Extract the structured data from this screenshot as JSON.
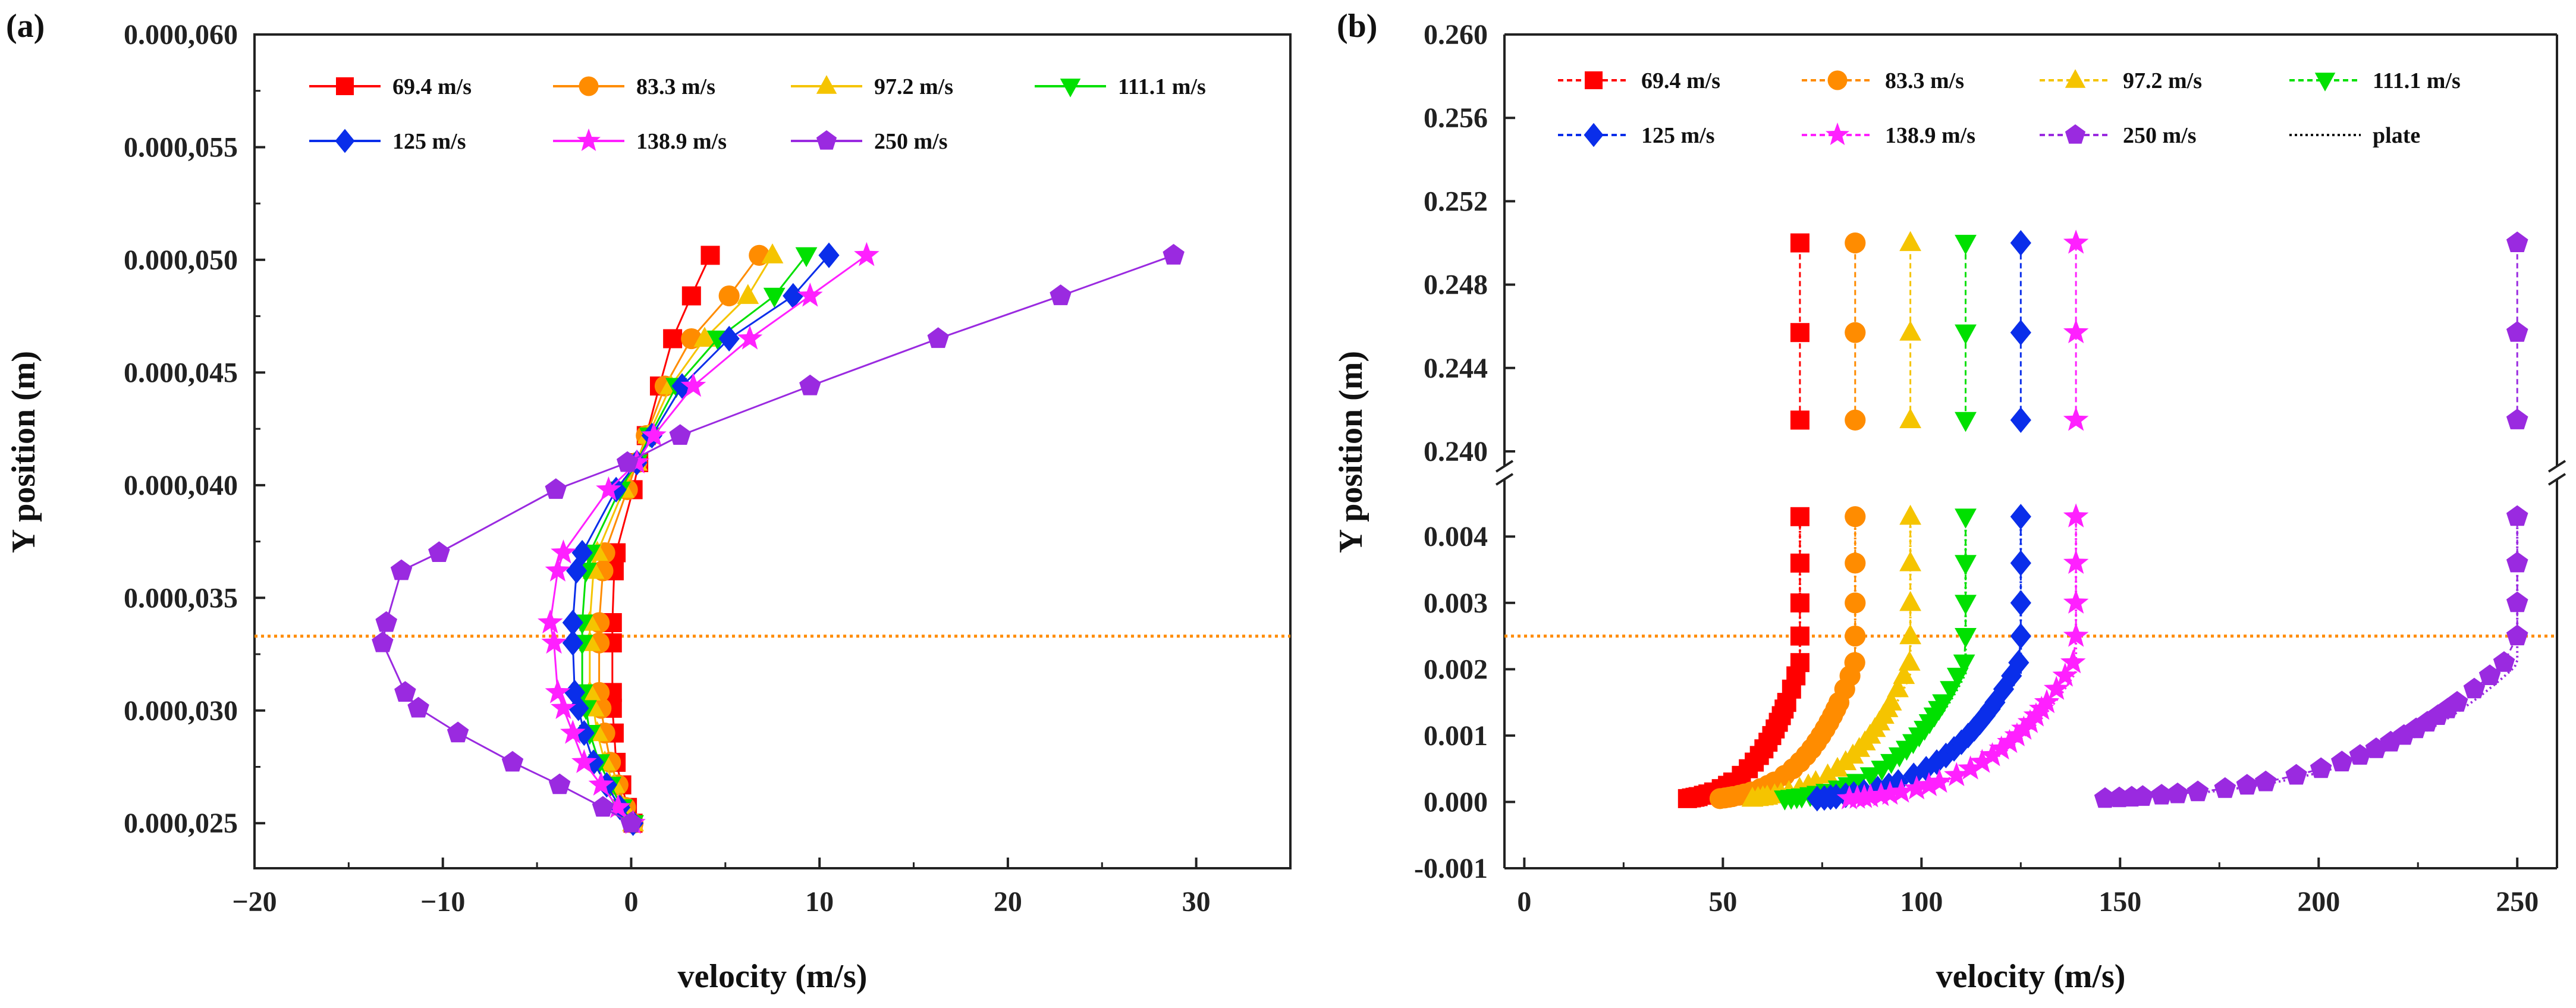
{
  "chart_data": [
    {
      "id": "a",
      "type": "line",
      "panel_label": "(a)",
      "xlabel": "velocity (m/s)",
      "ylabel": "Y position (m)",
      "xlim": [
        -20,
        35
      ],
      "ylim": [
        2.3e-05,
        6e-05
      ],
      "xticks": [
        -20,
        -10,
        0,
        10,
        20,
        30
      ],
      "xtick_labels": [
        "−20",
        "−10",
        "0",
        "10",
        "20",
        "30"
      ],
      "yticks": [
        2.5e-05,
        3e-05,
        3.5e-05,
        4e-05,
        4.5e-05,
        5e-05,
        5.5e-05,
        6e-05
      ],
      "ytick_labels": [
        "0.000,025",
        "0.000,030",
        "0.000,035",
        "0.000,040",
        "0.000,045",
        "0.000,050",
        "0.000,055",
        "0.000,060"
      ],
      "reference_line_y": 3.33e-05,
      "y_points": [
        2.5e-05,
        2.57e-05,
        2.67e-05,
        2.77e-05,
        2.9e-05,
        3.01e-05,
        3.08e-05,
        3.3e-05,
        3.39e-05,
        3.62e-05,
        3.7e-05,
        3.98e-05,
        4.1e-05,
        4.22e-05,
        4.44e-05,
        4.65e-05,
        4.84e-05,
        5.02e-05
      ],
      "series": [
        {
          "name": "69.4 m/s",
          "color": "#ff0000",
          "marker": "square",
          "values": [
            0.1,
            -0.2,
            -0.5,
            -0.8,
            -0.9,
            -1.0,
            -1.0,
            -1.0,
            -1.0,
            -0.9,
            -0.8,
            0.1,
            0.4,
            0.8,
            1.5,
            2.2,
            3.2,
            4.2
          ]
        },
        {
          "name": "83.3 m/s",
          "color": "#ff8c00",
          "marker": "circle",
          "values": [
            0.1,
            -0.3,
            -0.7,
            -1.1,
            -1.4,
            -1.6,
            -1.7,
            -1.7,
            -1.7,
            -1.5,
            -1.4,
            -0.2,
            0.3,
            0.8,
            1.8,
            3.2,
            5.2,
            6.8
          ]
        },
        {
          "name": "97.2 m/s",
          "color": "#f5c400",
          "marker": "triangle-up",
          "values": [
            0.1,
            -0.4,
            -0.9,
            -1.4,
            -1.8,
            -2.0,
            -2.2,
            -2.2,
            -2.2,
            -2.0,
            -1.8,
            -0.4,
            0.3,
            0.9,
            2.1,
            3.9,
            6.2,
            7.5
          ]
        },
        {
          "name": "111.1 m/s",
          "color": "#00e000",
          "marker": "triangle-down",
          "values": [
            0.1,
            -0.5,
            -1.1,
            -1.7,
            -2.2,
            -2.4,
            -2.6,
            -2.6,
            -2.6,
            -2.4,
            -2.2,
            -0.6,
            0.3,
            1.0,
            2.4,
            4.6,
            7.6,
            9.3
          ]
        },
        {
          "name": "125 m/s",
          "color": "#0a2eea",
          "marker": "diamond",
          "values": [
            0.1,
            -0.6,
            -1.3,
            -2.0,
            -2.5,
            -2.8,
            -3.0,
            -3.1,
            -3.1,
            -2.9,
            -2.6,
            -0.8,
            0.3,
            1.1,
            2.7,
            5.2,
            8.6,
            10.5
          ]
        },
        {
          "name": "138.9 m/s",
          "color": "#ff20ff",
          "marker": "star",
          "values": [
            0.1,
            -0.7,
            -1.6,
            -2.5,
            -3.1,
            -3.6,
            -3.9,
            -4.1,
            -4.3,
            -3.9,
            -3.6,
            -1.2,
            0.3,
            1.2,
            3.3,
            6.3,
            9.5,
            12.5
          ]
        },
        {
          "name": "250 m/s",
          "color": "#9a2ae0",
          "marker": "pentagon",
          "values": [
            0.0,
            -1.5,
            -3.8,
            -6.3,
            -9.2,
            -11.3,
            -12.0,
            -13.2,
            -13.0,
            -12.2,
            -10.2,
            -4.0,
            -0.2,
            2.6,
            9.5,
            16.3,
            22.8,
            28.8
          ]
        }
      ]
    },
    {
      "id": "b",
      "type": "line",
      "panel_label": "(b)",
      "xlabel": "velocity (m/s)",
      "ylabel": "Y position (m)",
      "xlim": [
        -5,
        260
      ],
      "ylim_lower": [
        -0.001,
        0.0048
      ],
      "ylim_upper": [
        0.2396,
        0.26
      ],
      "axis_break": true,
      "xticks": [
        0,
        50,
        100,
        150,
        200,
        250
      ],
      "xtick_labels": [
        "0",
        "50",
        "100",
        "150",
        "200",
        "250"
      ],
      "yticks_lower": [
        -0.001,
        0.0,
        0.001,
        0.002,
        0.003,
        0.004
      ],
      "ytick_labels_lower": [
        "-0.001",
        "0.000",
        "0.001",
        "0.002",
        "0.003",
        "0.004"
      ],
      "yticks_upper": [
        0.24,
        0.244,
        0.248,
        0.252,
        0.256,
        0.26
      ],
      "ytick_labels_upper": [
        "0.240",
        "0.244",
        "0.248",
        "0.252",
        "0.256",
        "0.260"
      ],
      "reference_line_y": 0.0025,
      "profile_y": [
        5e-05,
        6e-05,
        7e-05,
        8e-05,
        0.0001,
        0.00012,
        0.00015,
        0.0002,
        0.00025,
        0.0003,
        0.0004,
        0.0005,
        0.0006,
        0.0007,
        0.0008,
        0.0009,
        0.001,
        0.0011,
        0.0012,
        0.0013,
        0.0014,
        0.0015,
        0.0017,
        0.0019,
        0.0021,
        0.0025,
        0.003,
        0.0036,
        0.0043
      ],
      "profile_y_upper": [
        0.2415,
        0.2457,
        0.25
      ],
      "series": [
        {
          "name": "69.4 m/s",
          "color": "#ff0000",
          "marker": "square",
          "free_stream": 69.4
        },
        {
          "name": "83.3 m/s",
          "color": "#ff8c00",
          "marker": "circle",
          "free_stream": 83.3
        },
        {
          "name": "97.2 m/s",
          "color": "#f5c400",
          "marker": "triangle-up",
          "free_stream": 97.2
        },
        {
          "name": "111.1 m/s",
          "color": "#00e000",
          "marker": "triangle-down",
          "free_stream": 111.1
        },
        {
          "name": "125 m/s",
          "color": "#0a2eea",
          "marker": "diamond",
          "free_stream": 125
        },
        {
          "name": "138.9 m/s",
          "color": "#ff20ff",
          "marker": "star",
          "free_stream": 138.9
        },
        {
          "name": "250 m/s",
          "color": "#9a2ae0",
          "marker": "pentagon",
          "free_stream": 250
        },
        {
          "name": "plate",
          "color": "#111111",
          "marker": "none",
          "free_stream": null
        }
      ]
    }
  ]
}
